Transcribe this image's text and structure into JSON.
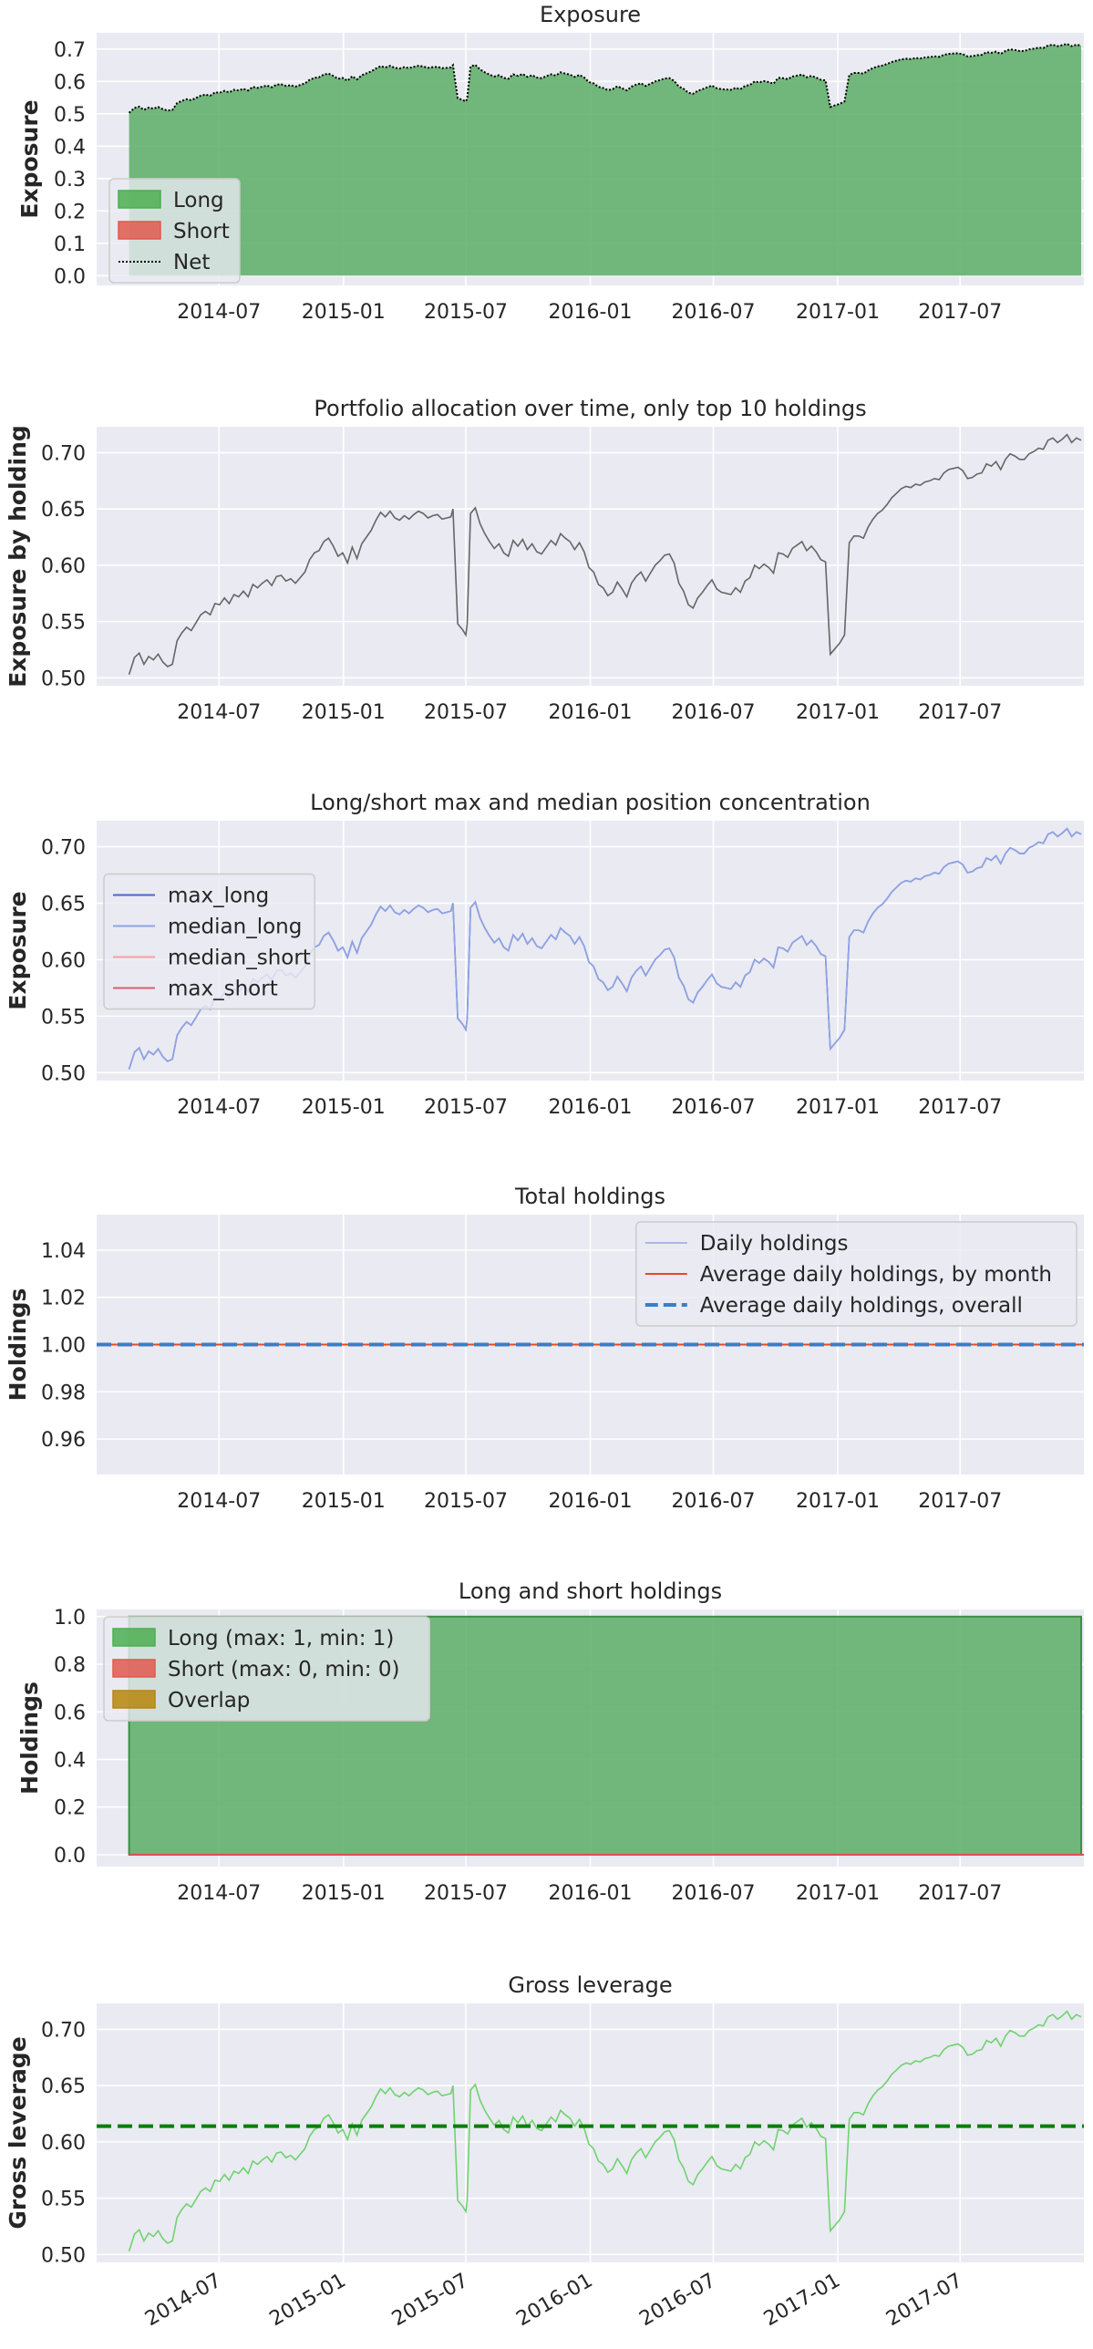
{
  "figure": {
    "x_tick_labels": [
      "2014-07",
      "2015-01",
      "2015-07",
      "2016-01",
      "2016-07",
      "2017-01",
      "2017-07"
    ]
  },
  "chart_data": [
    {
      "type": "area",
      "title": "Exposure",
      "ylabel": "Exposure",
      "xlabel": "",
      "xlim": [
        "2014-01-01",
        "2017-12-31"
      ],
      "ylim": [
        -0.03,
        0.75
      ],
      "yticks": [
        "0.0",
        "0.1",
        "0.2",
        "0.3",
        "0.4",
        "0.5",
        "0.6",
        "0.7"
      ],
      "grid": true,
      "legend": {
        "position": "bottom-left",
        "entries": [
          {
            "label": "Long",
            "kind": "patch",
            "color": "#4caf50"
          },
          {
            "label": "Short",
            "kind": "patch",
            "color": "#e05a4e"
          },
          {
            "label": "Net",
            "kind": "dotted-line",
            "color": "#000000"
          }
        ]
      },
      "series": [
        {
          "name": "Long",
          "source": "allocation",
          "style": "area",
          "color": "#5cad65"
        },
        {
          "name": "Short",
          "constant": 0.0,
          "style": "area",
          "color": "#e05a4e"
        },
        {
          "name": "Net",
          "source": "allocation",
          "style": "dotted",
          "color": "#000000"
        }
      ]
    },
    {
      "type": "line",
      "title": "Portfolio allocation over time, only top 10 holdings",
      "ylabel": "Exposure by holding",
      "xlabel": "",
      "xlim": [
        "2014-01-01",
        "2017-12-31"
      ],
      "ylim": [
        0.493,
        0.723
      ],
      "yticks": [
        "0.50",
        "0.55",
        "0.60",
        "0.65",
        "0.70"
      ],
      "grid": true,
      "series": [
        {
          "source": "allocation",
          "style": "line",
          "color": "#666666"
        }
      ]
    },
    {
      "type": "line",
      "title": "Long/short max and median position concentration",
      "ylabel": "Exposure",
      "xlabel": "",
      "xlim": [
        "2014-01-01",
        "2017-12-31"
      ],
      "ylim": [
        0.493,
        0.723
      ],
      "yticks": [
        "0.50",
        "0.55",
        "0.60",
        "0.65",
        "0.70"
      ],
      "grid": true,
      "legend": {
        "position": "center-left",
        "entries": [
          {
            "label": "max_long",
            "kind": "line",
            "color": "#4a66c8"
          },
          {
            "label": "median_long",
            "kind": "line",
            "color": "#8fa3e3"
          },
          {
            "label": "median_short",
            "kind": "line",
            "color": "#f4a0a0"
          },
          {
            "label": "max_short",
            "kind": "line",
            "color": "#d9606e"
          }
        ]
      },
      "series": [
        {
          "name": "max_long",
          "source": "allocation",
          "style": "line",
          "color": "#4a66c8"
        },
        {
          "name": "median_long",
          "source": "allocation",
          "style": "line",
          "color": "#8fa3e3"
        }
      ]
    },
    {
      "type": "line",
      "title": "Total holdings",
      "ylabel": "Holdings",
      "xlabel": "",
      "xlim": [
        "2014-01-01",
        "2017-12-31"
      ],
      "ylim": [
        0.945,
        1.055
      ],
      "yticks": [
        "0.96",
        "0.98",
        "1.00",
        "1.02",
        "1.04"
      ],
      "grid": true,
      "legend": {
        "position": "top-right",
        "entries": [
          {
            "label": "Daily holdings",
            "kind": "line",
            "color": "#a9b8e0"
          },
          {
            "label": "Average daily holdings, by month",
            "kind": "line",
            "color": "#e8491d"
          },
          {
            "label": "Average daily holdings, overall",
            "kind": "dashed-line",
            "color": "#3a7dc9"
          }
        ]
      },
      "series": [
        {
          "name": "Daily holdings",
          "constant": 1.0,
          "style": "line",
          "color": "#a9b8e0"
        },
        {
          "name": "Average daily holdings, by month",
          "constant": 1.0,
          "style": "line",
          "color": "#e8491d"
        },
        {
          "name": "Average daily holdings, overall",
          "constant": 1.0,
          "style": "dashed",
          "color": "#3a7dc9"
        }
      ]
    },
    {
      "type": "area",
      "title": "Long and short holdings",
      "ylabel": "Holdings",
      "xlabel": "",
      "xlim": [
        "2014-01-01",
        "2017-12-31"
      ],
      "ylim": [
        -0.05,
        1.03
      ],
      "yticks": [
        "0.0",
        "0.2",
        "0.4",
        "0.6",
        "0.8",
        "1.0"
      ],
      "grid": true,
      "legend": {
        "position": "top-left",
        "entries": [
          {
            "label": "Long (max: 1, min: 1)",
            "kind": "patch",
            "color": "#4caf50"
          },
          {
            "label": "Short (max: 0, min: 0)",
            "kind": "patch",
            "color": "#e05a4e"
          },
          {
            "label": "Overlap",
            "kind": "patch",
            "color": "#b8860b"
          }
        ]
      },
      "series": [
        {
          "name": "Long (max: 1, min: 1)",
          "constant": 1,
          "style": "area",
          "color": "#5cad65"
        },
        {
          "name": "Short (max: 0, min: 0)",
          "constant": 0,
          "style": "line",
          "color": "#d9534f"
        }
      ]
    },
    {
      "type": "line",
      "title": "Gross leverage",
      "ylabel": "Gross leverage",
      "xlabel": "",
      "xlim": [
        "2014-01-01",
        "2017-12-31"
      ],
      "ylim": [
        0.493,
        0.723
      ],
      "yticks": [
        "0.50",
        "0.55",
        "0.60",
        "0.65",
        "0.70"
      ],
      "grid": true,
      "x_tick_rotation": 30,
      "series": [
        {
          "name": "Gross leverage",
          "source": "allocation",
          "style": "line",
          "color": "#6fd36f"
        },
        {
          "name": "Mean gross leverage",
          "constant": 0.614,
          "style": "dashed",
          "color": "#008000"
        }
      ]
    }
  ],
  "allocation": {
    "dates": [
      "2014-02-18",
      "2014-02-26",
      "2014-03-05",
      "2014-03-12",
      "2014-03-19",
      "2014-03-26",
      "2014-04-02",
      "2014-04-09",
      "2014-04-16",
      "2014-04-23",
      "2014-04-30",
      "2014-05-07",
      "2014-05-14",
      "2014-05-21",
      "2014-05-28",
      "2014-06-04",
      "2014-06-11",
      "2014-06-18",
      "2014-06-25",
      "2014-07-02",
      "2014-07-09",
      "2014-07-16",
      "2014-07-23",
      "2014-07-30",
      "2014-08-06",
      "2014-08-13",
      "2014-08-20",
      "2014-08-27",
      "2014-09-03",
      "2014-09-10",
      "2014-09-17",
      "2014-09-24",
      "2014-10-01",
      "2014-10-08",
      "2014-10-15",
      "2014-10-22",
      "2014-10-29",
      "2014-11-05",
      "2014-11-12",
      "2014-11-19",
      "2014-11-26",
      "2014-12-03",
      "2014-12-10",
      "2014-12-17",
      "2014-12-24",
      "2014-12-31",
      "2015-01-07",
      "2015-01-14",
      "2015-01-21",
      "2015-01-28",
      "2015-02-04",
      "2015-02-11",
      "2015-02-18",
      "2015-02-25",
      "2015-03-04",
      "2015-03-11",
      "2015-03-18",
      "2015-03-25",
      "2015-04-01",
      "2015-04-08",
      "2015-04-15",
      "2015-04-22",
      "2015-04-29",
      "2015-05-06",
      "2015-05-13",
      "2015-05-20",
      "2015-05-27",
      "2015-06-03",
      "2015-06-09",
      "2015-06-12",
      "2015-06-19",
      "2015-06-26",
      "2015-07-01",
      "2015-07-03",
      "2015-07-08",
      "2015-07-15",
      "2015-07-22",
      "2015-07-29",
      "2015-08-05",
      "2015-08-12",
      "2015-08-19",
      "2015-08-26",
      "2015-09-02",
      "2015-09-09",
      "2015-09-16",
      "2015-09-23",
      "2015-09-30",
      "2015-10-07",
      "2015-10-14",
      "2015-10-21",
      "2015-10-28",
      "2015-11-04",
      "2015-11-11",
      "2015-11-18",
      "2015-11-25",
      "2015-12-02",
      "2015-12-09",
      "2015-12-16",
      "2015-12-23",
      "2015-12-30",
      "2016-01-06",
      "2016-01-13",
      "2016-01-20",
      "2016-01-27",
      "2016-02-03",
      "2016-02-10",
      "2016-02-17",
      "2016-02-24",
      "2016-03-02",
      "2016-03-09",
      "2016-03-16",
      "2016-03-23",
      "2016-03-30",
      "2016-04-06",
      "2016-04-13",
      "2016-04-20",
      "2016-04-27",
      "2016-05-04",
      "2016-05-11",
      "2016-05-18",
      "2016-05-25",
      "2016-06-01",
      "2016-06-08",
      "2016-06-15",
      "2016-06-22",
      "2016-06-29",
      "2016-07-06",
      "2016-07-13",
      "2016-07-20",
      "2016-07-27",
      "2016-08-03",
      "2016-08-10",
      "2016-08-17",
      "2016-08-24",
      "2016-08-31",
      "2016-09-07",
      "2016-09-14",
      "2016-09-21",
      "2016-09-28",
      "2016-10-05",
      "2016-10-12",
      "2016-10-19",
      "2016-10-26",
      "2016-11-02",
      "2016-11-09",
      "2016-11-16",
      "2016-11-23",
      "2016-11-30",
      "2016-12-07",
      "2016-12-14",
      "2016-12-21",
      "2016-12-28",
      "2017-01-04",
      "2017-01-11",
      "2017-01-18",
      "2017-01-25",
      "2017-02-01",
      "2017-02-08",
      "2017-02-15",
      "2017-02-22",
      "2017-03-01",
      "2017-03-08",
      "2017-03-15",
      "2017-03-22",
      "2017-03-29",
      "2017-04-05",
      "2017-04-12",
      "2017-04-19",
      "2017-04-26",
      "2017-05-03",
      "2017-05-10",
      "2017-05-17",
      "2017-05-24",
      "2017-05-31",
      "2017-06-07",
      "2017-06-14",
      "2017-06-21",
      "2017-06-28",
      "2017-07-05",
      "2017-07-12",
      "2017-07-19",
      "2017-07-26",
      "2017-08-02",
      "2017-08-09",
      "2017-08-16",
      "2017-08-23",
      "2017-08-30",
      "2017-09-06",
      "2017-09-13",
      "2017-09-20",
      "2017-09-27",
      "2017-10-04",
      "2017-10-11",
      "2017-10-18",
      "2017-10-25",
      "2017-11-01",
      "2017-11-08",
      "2017-11-15",
      "2017-11-22",
      "2017-11-29",
      "2017-12-06",
      "2017-12-13",
      "2017-12-20",
      "2017-12-27"
    ],
    "values": [
      0.503,
      0.518,
      0.522,
      0.512,
      0.519,
      0.516,
      0.521,
      0.514,
      0.51,
      0.512,
      0.533,
      0.54,
      0.545,
      0.542,
      0.549,
      0.556,
      0.559,
      0.556,
      0.566,
      0.565,
      0.571,
      0.566,
      0.574,
      0.572,
      0.577,
      0.572,
      0.583,
      0.58,
      0.584,
      0.587,
      0.582,
      0.59,
      0.591,
      0.586,
      0.588,
      0.584,
      0.589,
      0.594,
      0.605,
      0.611,
      0.613,
      0.621,
      0.624,
      0.617,
      0.608,
      0.611,
      0.602,
      0.616,
      0.606,
      0.619,
      0.625,
      0.631,
      0.64,
      0.647,
      0.643,
      0.648,
      0.642,
      0.64,
      0.644,
      0.641,
      0.645,
      0.648,
      0.646,
      0.642,
      0.644,
      0.645,
      0.641,
      0.642,
      0.643,
      0.65,
      0.548,
      0.543,
      0.538,
      0.548,
      0.646,
      0.651,
      0.637,
      0.628,
      0.621,
      0.615,
      0.619,
      0.611,
      0.608,
      0.622,
      0.617,
      0.623,
      0.614,
      0.619,
      0.612,
      0.61,
      0.616,
      0.622,
      0.618,
      0.628,
      0.624,
      0.621,
      0.614,
      0.62,
      0.612,
      0.598,
      0.594,
      0.583,
      0.58,
      0.573,
      0.576,
      0.585,
      0.579,
      0.572,
      0.584,
      0.59,
      0.594,
      0.586,
      0.593,
      0.6,
      0.604,
      0.609,
      0.61,
      0.602,
      0.584,
      0.577,
      0.565,
      0.562,
      0.571,
      0.576,
      0.582,
      0.587,
      0.579,
      0.576,
      0.575,
      0.574,
      0.58,
      0.576,
      0.586,
      0.589,
      0.6,
      0.597,
      0.601,
      0.598,
      0.593,
      0.611,
      0.61,
      0.607,
      0.615,
      0.618,
      0.621,
      0.613,
      0.617,
      0.612,
      0.605,
      0.603,
      0.521,
      0.526,
      0.531,
      0.538,
      0.62,
      0.626,
      0.626,
      0.624,
      0.634,
      0.641,
      0.646,
      0.649,
      0.654,
      0.66,
      0.664,
      0.668,
      0.67,
      0.669,
      0.672,
      0.671,
      0.674,
      0.675,
      0.677,
      0.676,
      0.682,
      0.685,
      0.686,
      0.687,
      0.684,
      0.677,
      0.678,
      0.681,
      0.682,
      0.69,
      0.688,
      0.692,
      0.685,
      0.694,
      0.699,
      0.697,
      0.694,
      0.694,
      0.699,
      0.701,
      0.704,
      0.703,
      0.711,
      0.713,
      0.709,
      0.712,
      0.716,
      0.709,
      0.713,
      0.711
    ]
  }
}
